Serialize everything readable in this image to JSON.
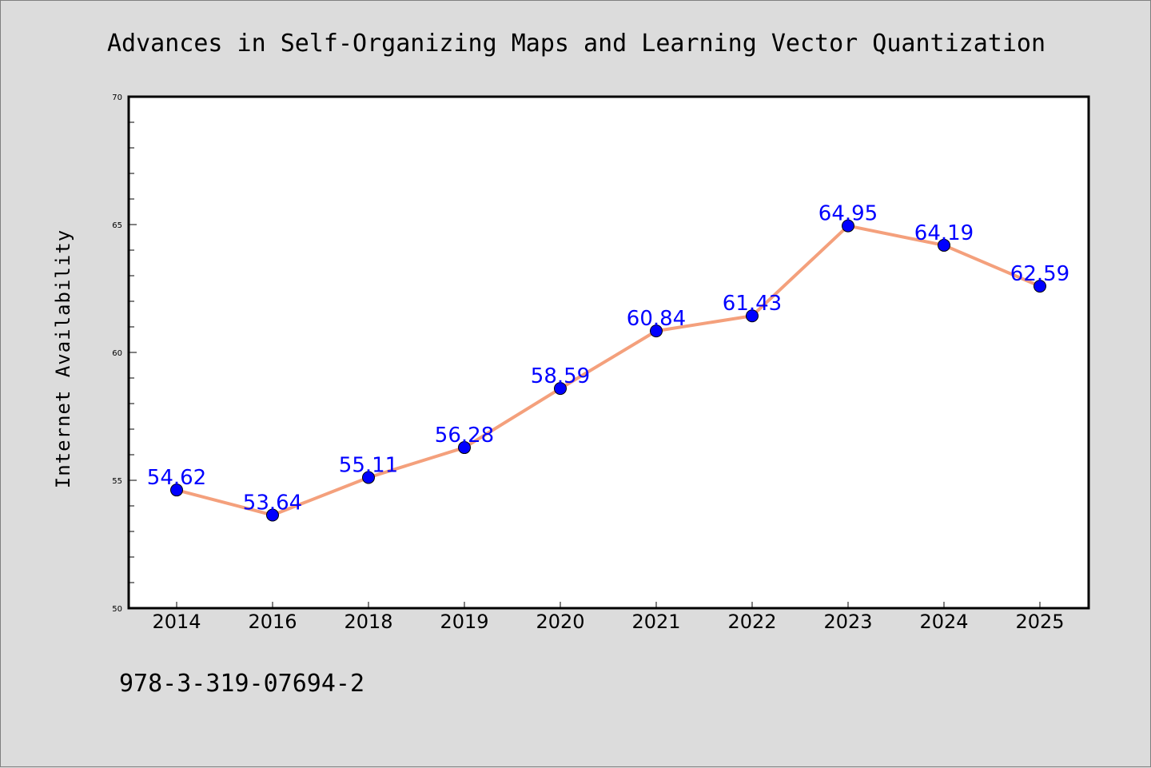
{
  "chart_data": {
    "type": "line",
    "title": "Advances in Self-Organizing Maps and Learning Vector Quantization",
    "xlabel": "",
    "ylabel": "Internet Availability",
    "categories": [
      "2014",
      "2016",
      "2018",
      "2019",
      "2020",
      "2021",
      "2022",
      "2023",
      "2024",
      "2025"
    ],
    "series": [
      {
        "values": [
          54.62,
          53.64,
          55.11,
          56.28,
          58.59,
          60.84,
          61.43,
          64.95,
          64.19,
          62.59
        ],
        "labels": [
          "54.62",
          "53.64",
          "55.11",
          "56.28",
          "58.59",
          "60.84",
          "61.43",
          "64.95",
          "64.19",
          "62.59"
        ],
        "line_color": "#f4a07c",
        "marker_color": "#0000ff"
      }
    ],
    "ylim": [
      50,
      70
    ],
    "yticks": [
      "50",
      "55",
      "60",
      "65",
      "70"
    ],
    "grid": false,
    "legend": "none"
  },
  "footer": {
    "isbn": "978-3-319-07694-2"
  },
  "colors": {
    "background": "#dcdcdc",
    "plot_background": "#ffffff",
    "line": "#f4a07c",
    "marker": "#0000ff",
    "data_label": "#0000ff"
  }
}
